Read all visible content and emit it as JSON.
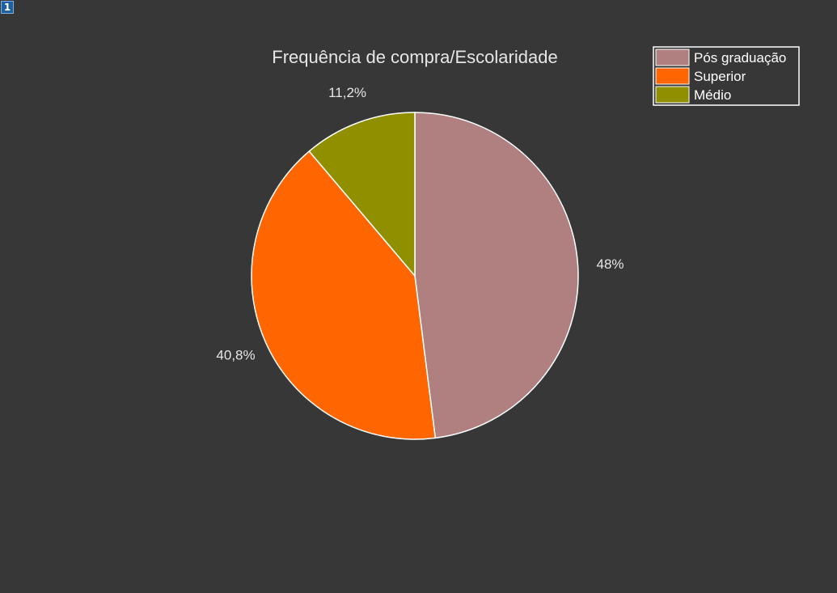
{
  "figure_index": "1",
  "chart_data": {
    "type": "pie",
    "title": "Frequência de compra/Escolaridade",
    "categories": [
      "Pós graduação",
      "Superior",
      "Médio"
    ],
    "values": [
      48,
      40.8,
      11.2
    ],
    "labels": [
      "48%",
      "40,8%",
      "11,2%"
    ],
    "colors": [
      "#b08080",
      "#ff6600",
      "#8f8f00"
    ],
    "start": "top",
    "direction": "clockwise",
    "legend_position": "top-right",
    "background_color": "#373737",
    "slice_edge_color": "#ffffff"
  }
}
